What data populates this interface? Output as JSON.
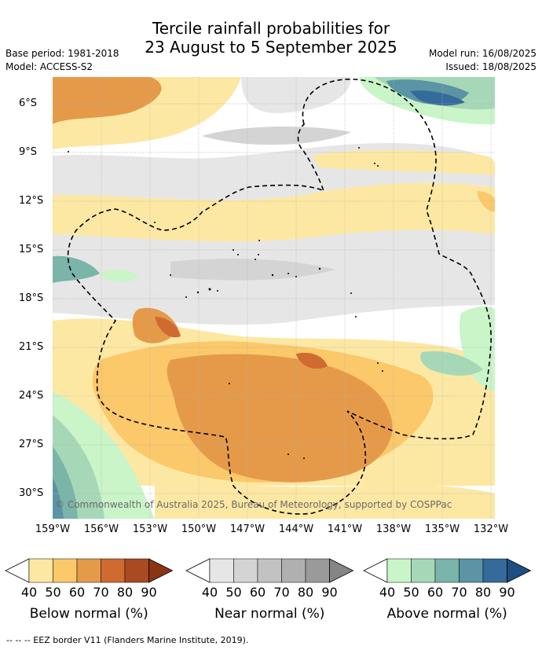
{
  "title_line1": "Tercile rainfall probabilities for",
  "title_line2": "23 August to 5 September 2025",
  "base_period": "Base period: 1981-2018",
  "model": "Model: ACCESS-S2",
  "model_run": "Model run: 16/08/2025",
  "issued": "Issued: 18/08/2025",
  "copyright": "© Commonwealth of Australia 2025, Bureau of Meteorology, supported by COSPPac",
  "lat_ticks": [
    "6°S",
    "9°S",
    "12°S",
    "15°S",
    "18°S",
    "21°S",
    "24°S",
    "27°S",
    "30°S"
  ],
  "lon_ticks": [
    "159°W",
    "156°W",
    "153°W",
    "150°W",
    "147°W",
    "144°W",
    "141°W",
    "138°W",
    "135°W",
    "132°W"
  ],
  "colorbars": [
    {
      "label": "Below normal (%)",
      "ticks": [
        "40",
        "50",
        "60",
        "70",
        "80",
        "90"
      ],
      "colors": [
        "#fde8a3",
        "#fbc86a",
        "#e59a4a",
        "#cf6a30",
        "#a84a22",
        "#8a3416"
      ]
    },
    {
      "label": "Near normal (%)",
      "ticks": [
        "40",
        "50",
        "60",
        "70",
        "80",
        "90"
      ],
      "colors": [
        "#e6e6e6",
        "#d4d4d4",
        "#c2c2c2",
        "#b0b0b0",
        "#9a9a9a",
        "#858585"
      ]
    },
    {
      "label": "Above normal (%)",
      "ticks": [
        "40",
        "50",
        "60",
        "70",
        "80",
        "90"
      ],
      "colors": [
        "#c9f5c9",
        "#a6d8b8",
        "#7bb4a8",
        "#5b94a4",
        "#346b9a",
        "#1f4f80"
      ]
    }
  ],
  "footer": "-- -- -- EEZ border V11 (Flanders Marine Institute, 2019)."
}
